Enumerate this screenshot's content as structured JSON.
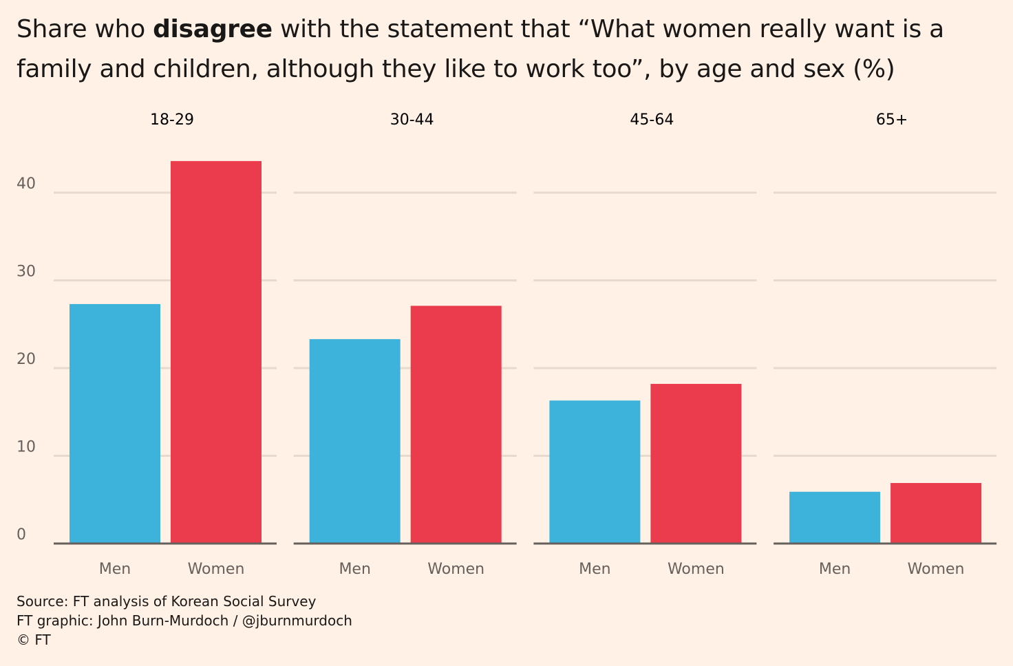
{
  "chart_data": {
    "type": "bar",
    "title": {
      "before": "Share who",
      "emphasis": "disagree",
      "after": "with the statement that “What women really want is a family and children, although they like to work too”, by age and sex (%)"
    },
    "categories": [
      "Men",
      "Women"
    ],
    "colors": [
      "#3db3dc",
      "#eb3c4e"
    ],
    "panels": [
      {
        "name": "18-29",
        "values": [
          27.3,
          43.6
        ]
      },
      {
        "name": "30-44",
        "values": [
          23.3,
          27.1
        ]
      },
      {
        "name": "45-64",
        "values": [
          16.3,
          18.2
        ]
      },
      {
        "name": "65+",
        "values": [
          5.9,
          6.9
        ]
      }
    ],
    "ylim": [
      0,
      44
    ],
    "yticks": [
      0,
      10,
      20,
      30,
      40
    ],
    "grid": true,
    "source": "Source: FT analysis of Korean Social Survey",
    "credit": "FT graphic: John Burn-Murdoch / @jburnmurdoch",
    "copyright": "© FT"
  }
}
